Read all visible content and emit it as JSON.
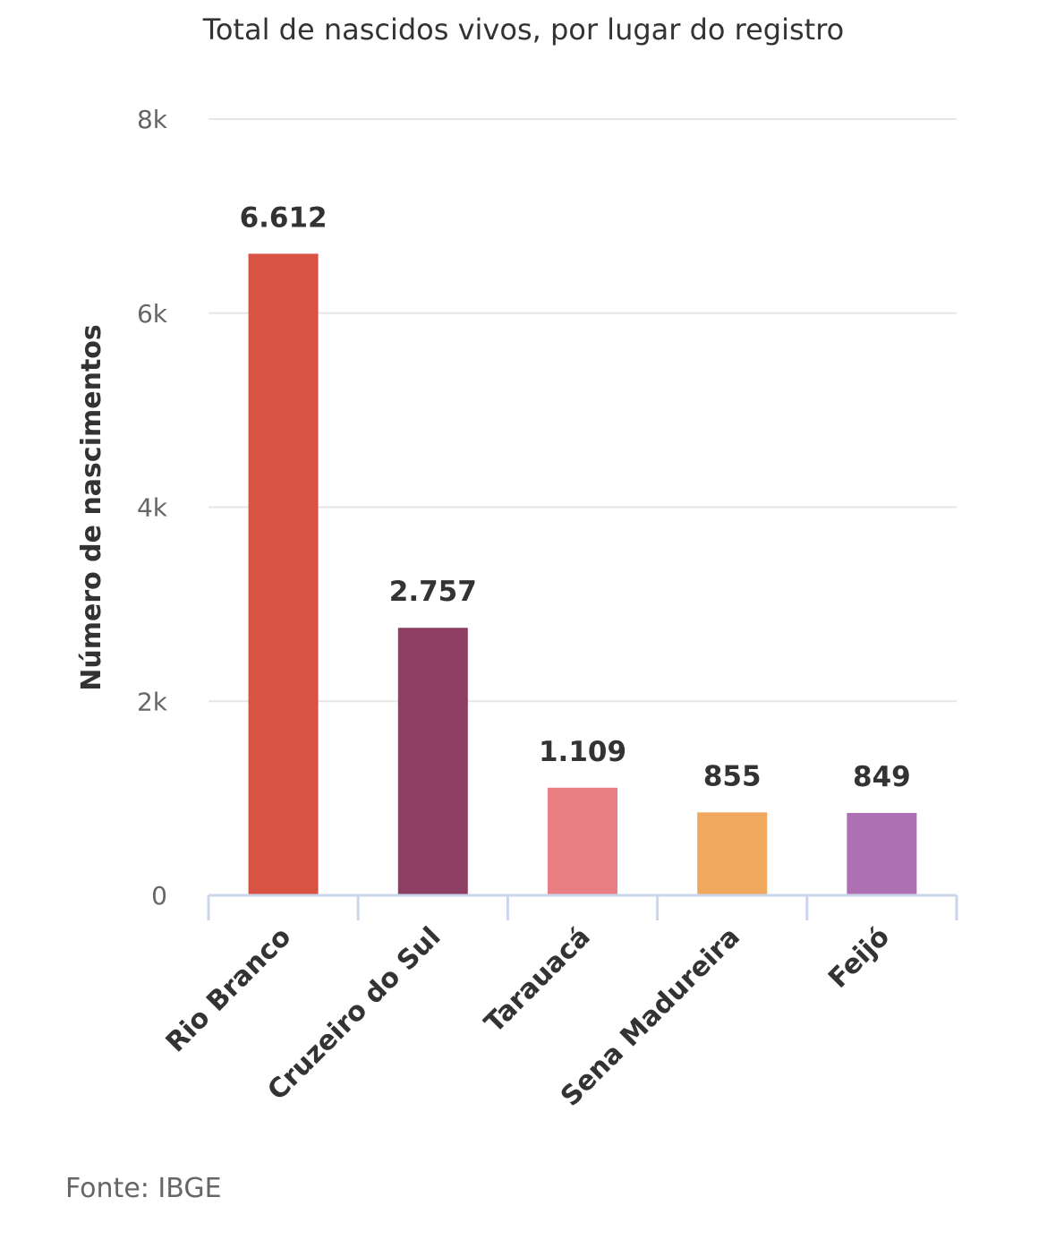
{
  "chart_data": {
    "type": "bar",
    "title": "Total de nascidos vivos, por lugar do registro",
    "xlabel": "",
    "ylabel": "Número de nascimentos",
    "categories": [
      "Rio Branco",
      "Cruzeiro do Sul",
      "Tarauacá",
      "Sena Madureira",
      "Feijó"
    ],
    "values": [
      6612,
      2757,
      1109,
      855,
      849
    ],
    "value_labels": [
      "6.612",
      "2.757",
      "1.109",
      "855",
      "849"
    ],
    "colors": [
      "#d95345",
      "#8e3d63",
      "#e97f82",
      "#efa85e",
      "#ad71b3"
    ],
    "ylim": [
      0,
      8000
    ],
    "yticks": [
      0,
      2000,
      4000,
      6000,
      8000
    ],
    "ytick_labels": [
      "0",
      "2k",
      "4k",
      "6k",
      "8k"
    ],
    "grid": true,
    "legend": "none"
  },
  "source": "Fonte: IBGE"
}
